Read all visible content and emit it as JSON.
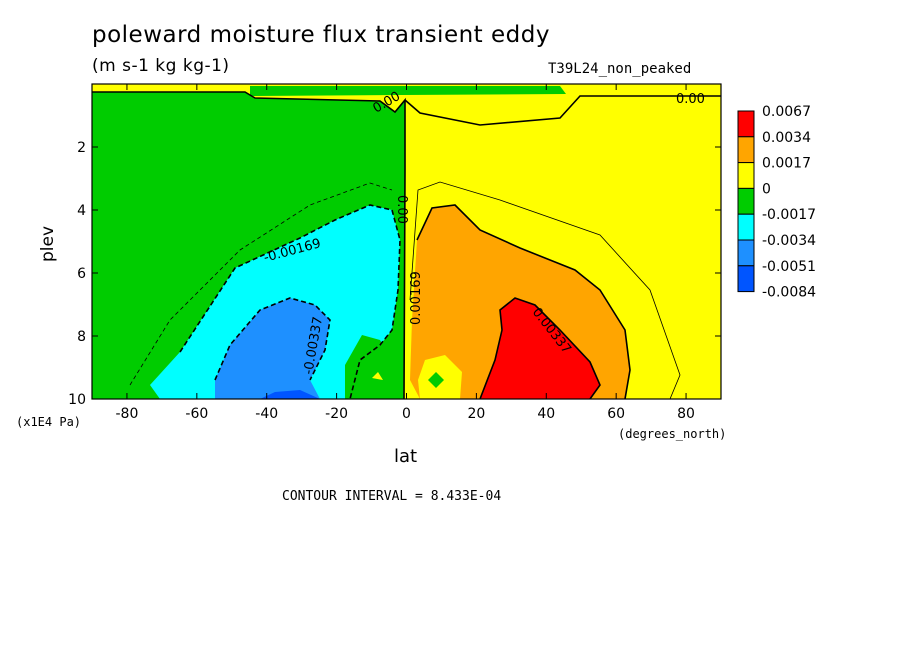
{
  "chart_data": {
    "type": "heatmap",
    "title": "poleward moisture flux transient eddy",
    "units": "(m s-1 kg kg-1)",
    "run_id": "T39L24_non_peaked",
    "xlabel": "lat",
    "x_unit": "(degrees_north)",
    "ylabel": "plev",
    "y_unit": "(x1E4 Pa)",
    "xlim": [
      -90,
      90
    ],
    "ylim": [
      0,
      10
    ],
    "y_inverted": true,
    "x_ticks": [
      "-80",
      "-60",
      "-40",
      "-20",
      "0",
      "20",
      "40",
      "60",
      "80"
    ],
    "y_ticks": [
      "2",
      "4",
      "6",
      "8",
      "10"
    ],
    "contour_interval_text": "CONTOUR INTERVAL = 8.433E-04",
    "colorbar": {
      "labels": [
        "0.0067",
        "0.0034",
        "0.0017",
        "0",
        "-0.0017",
        "-0.0034",
        "-0.0051",
        "-0.0084"
      ],
      "colors": [
        "#ff0000",
        "#ffa500",
        "#ffff00",
        "#00cc00",
        "#00ffff",
        "#1e90ff",
        "#0055ff"
      ]
    },
    "contour_labels": [
      "0.00",
      "0.00",
      "-0.00169",
      "-0.00337",
      "0.00",
      "0.00169",
      "0.00337"
    ]
  }
}
